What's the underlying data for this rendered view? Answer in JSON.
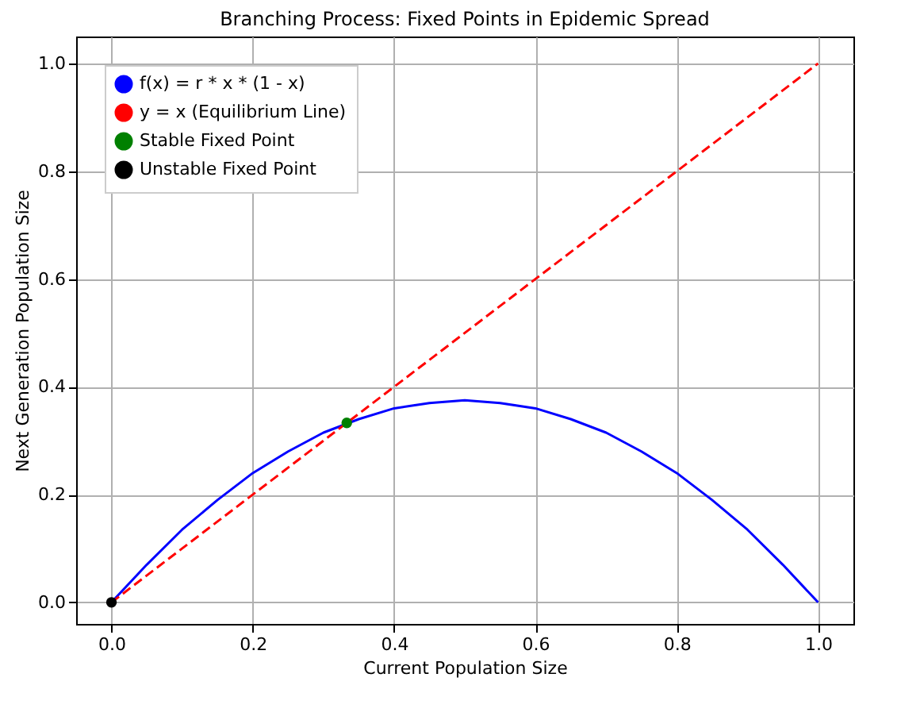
{
  "chart_data": {
    "type": "line",
    "title": "Branching Process: Fixed Points in Epidemic Spread",
    "xlabel": "Current Population Size",
    "ylabel": "Next Generation Population Size",
    "xlim": [
      -0.05,
      1.05
    ],
    "ylim": [
      -0.04,
      1.05
    ],
    "xticks": [
      {
        "value": 0,
        "label": "0.0"
      },
      {
        "value": 0.2,
        "label": "0.2"
      },
      {
        "value": 0.4,
        "label": "0.4"
      },
      {
        "value": 0.6,
        "label": "0.6"
      },
      {
        "value": 0.8,
        "label": "0.8"
      },
      {
        "value": 1,
        "label": "1.0"
      }
    ],
    "yticks": [
      {
        "value": 0,
        "label": "0.0"
      },
      {
        "value": 0.2,
        "label": "0.2"
      },
      {
        "value": 0.4,
        "label": "0.4"
      },
      {
        "value": 0.6,
        "label": "0.6"
      },
      {
        "value": 0.8,
        "label": "0.8"
      },
      {
        "value": 1,
        "label": "1.0"
      }
    ],
    "grid": true,
    "legend": "top left",
    "series": [
      {
        "name": "f(x) = r * x * (1 - x)",
        "color": "#0000ff",
        "line_style": "solid",
        "marker": "none",
        "x": [
          0,
          0.05,
          0.1,
          0.15,
          0.2,
          0.25,
          0.3,
          0.35,
          0.4,
          0.45,
          0.5,
          0.55,
          0.6,
          0.65,
          0.7,
          0.75,
          0.8,
          0.85,
          0.9,
          0.95,
          1
        ],
        "values": [
          0,
          0.07,
          0.135,
          0.19,
          0.24,
          0.28,
          0.315,
          0.34,
          0.36,
          0.37,
          0.375,
          0.37,
          0.36,
          0.34,
          0.315,
          0.28,
          0.24,
          0.19,
          0.135,
          0.07,
          0
        ]
      },
      {
        "name": "y = x (Equilibrium Line)",
        "color": "#ff0000",
        "line_style": "dashed",
        "marker": "none",
        "x": [
          0,
          1
        ],
        "values": [
          0,
          1
        ]
      },
      {
        "name": "Stable Fixed Point",
        "type": "scatter",
        "color": "#008000",
        "marker": "circle",
        "x": [
          0.333
        ],
        "values": [
          0.333
        ]
      },
      {
        "name": "Unstable Fixed Point",
        "type": "scatter",
        "color": "#000000",
        "marker": "circle",
        "x": [
          0
        ],
        "values": [
          0
        ]
      }
    ]
  }
}
